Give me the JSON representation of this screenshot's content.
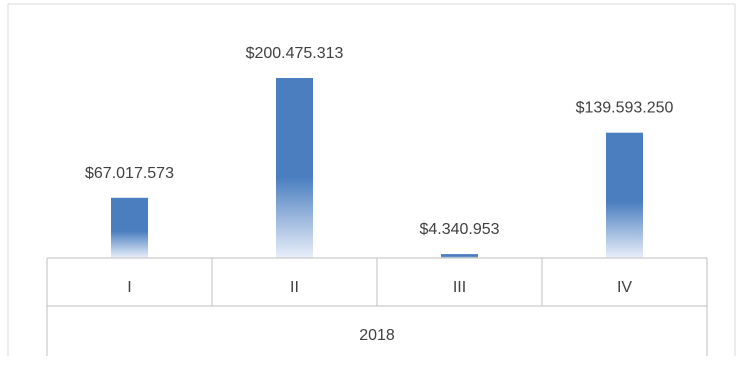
{
  "chart_data": {
    "type": "bar",
    "categories": [
      "I",
      "II",
      "III",
      "IV"
    ],
    "group_label": "2018",
    "series": [
      {
        "values": [
          67017573,
          200475313,
          4340953,
          139593250
        ],
        "labels": [
          "$67.017.573",
          "$200.475.313",
          "$4.340.953",
          "$139.593.250"
        ]
      }
    ],
    "title": "",
    "xlabel": "",
    "ylabel": "",
    "ylim": [
      0,
      200475313
    ],
    "grid": false,
    "legend": "none",
    "colors": {
      "bar_top": "#4a7ebf",
      "bar_bottom": "#e9effa",
      "axis": "#bfbfbf",
      "text": "#404040",
      "frame": "#d9d9d9"
    }
  }
}
